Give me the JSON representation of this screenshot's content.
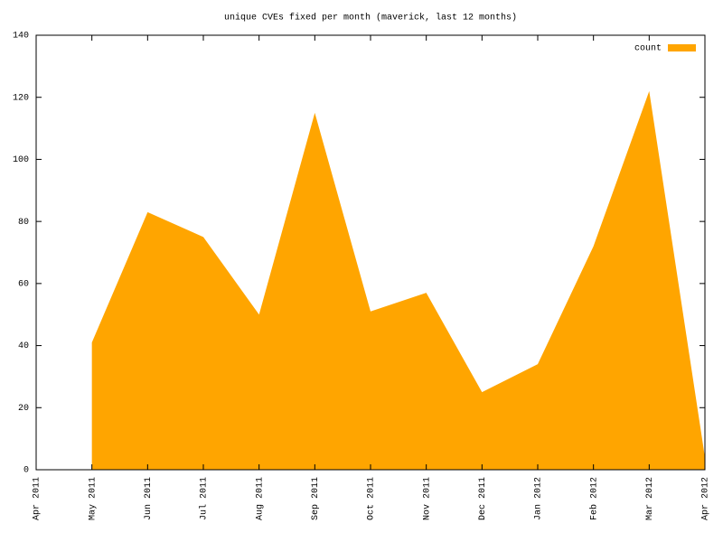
{
  "chart_data": {
    "type": "area",
    "title": "unique CVEs fixed per month (maverick, last 12 months)",
    "categories": [
      "Apr 2011",
      "May 2011",
      "Jun 2011",
      "Jul 2011",
      "Aug 2011",
      "Sep 2011",
      "Oct 2011",
      "Nov 2011",
      "Dec 2011",
      "Jan 2012",
      "Feb 2012",
      "Mar 2012",
      "Apr 2012"
    ],
    "series": [
      {
        "name": "count",
        "color": "#ffa500",
        "values": [
          null,
          41,
          83,
          75,
          50,
          115,
          51,
          57,
          25,
          34,
          72,
          122,
          4
        ]
      }
    ],
    "ylim": [
      0,
      140
    ],
    "yticks": [
      0,
      20,
      40,
      60,
      80,
      100,
      120,
      140
    ],
    "grid": false,
    "legend": "top right"
  }
}
